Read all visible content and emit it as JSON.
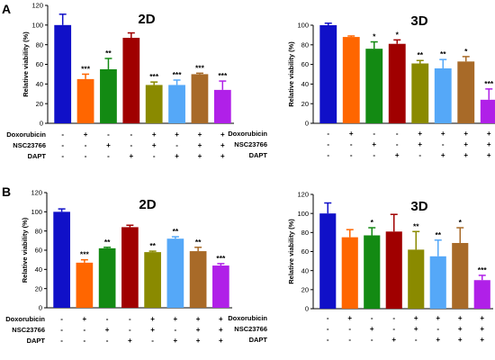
{
  "panel_letters": [
    "A",
    "B"
  ],
  "condition_labels": [
    "Doxorubicin",
    "NSC23766",
    "DAPT"
  ],
  "condition_signs": [
    [
      "-",
      "+",
      "-",
      "-",
      "+",
      "+",
      "+",
      "+"
    ],
    [
      "-",
      "-",
      "+",
      "-",
      "+",
      "-",
      "+",
      "+"
    ],
    [
      "-",
      "-",
      "-",
      "+",
      "-",
      "+",
      "+",
      "+"
    ]
  ],
  "bar_colors": [
    "#1010c8",
    "#ff6600",
    "#138a13",
    "#a00000",
    "#8a8a00",
    "#55a8f8",
    "#a86a28",
    "#b020e8"
  ],
  "chart_data": [
    {
      "type": "bar",
      "panel": "A",
      "title": "2D",
      "ylabel": "Relative viability (%)",
      "ylim": [
        0,
        120
      ],
      "yticks": [
        "0",
        "20",
        "40",
        "60",
        "80",
        "100",
        "120"
      ],
      "values": [
        100,
        45,
        55,
        87,
        39,
        39,
        50,
        34
      ],
      "errors": [
        11,
        5,
        11,
        5,
        3,
        5,
        1,
        9
      ],
      "significance": [
        "",
        "***",
        "**",
        "",
        "***",
        "***",
        "***",
        "***"
      ]
    },
    {
      "type": "bar",
      "panel": "A",
      "title": "3D",
      "ylabel": "Relative viability (%)",
      "ylim": [
        0,
        100
      ],
      "yticks": [
        "0",
        "20",
        "40",
        "60",
        "80",
        "100"
      ],
      "values": [
        100,
        88,
        76,
        81,
        61,
        56,
        63,
        24
      ],
      "errors": [
        2,
        1,
        7,
        4,
        3,
        9,
        5,
        11
      ],
      "significance": [
        "",
        "",
        "*",
        "*",
        "**",
        "**",
        "*",
        "***"
      ]
    },
    {
      "type": "bar",
      "panel": "B",
      "title": "2D",
      "ylabel": "Relative viability (%)",
      "ylim": [
        0,
        120
      ],
      "yticks": [
        "0",
        "20",
        "40",
        "60",
        "80",
        "100",
        "120"
      ],
      "values": [
        100,
        47,
        62,
        84,
        58,
        72,
        59,
        44
      ],
      "errors": [
        3,
        3,
        1,
        2,
        1,
        2,
        4,
        2
      ],
      "significance": [
        "",
        "***",
        "**",
        "",
        "**",
        "**",
        "**",
        "***"
      ]
    },
    {
      "type": "bar",
      "panel": "B",
      "title": "3D",
      "ylabel": "Relative viability (%)",
      "ylim": [
        0,
        120
      ],
      "yticks": [
        "0",
        "20",
        "40",
        "60",
        "80",
        "100",
        "120"
      ],
      "values": [
        100,
        75,
        77,
        81,
        62,
        55,
        69,
        30
      ],
      "errors": [
        11,
        8,
        8,
        18,
        19,
        17,
        16,
        5
      ],
      "significance": [
        "",
        "",
        "*",
        "",
        "**",
        "**",
        "*",
        "***"
      ]
    }
  ]
}
